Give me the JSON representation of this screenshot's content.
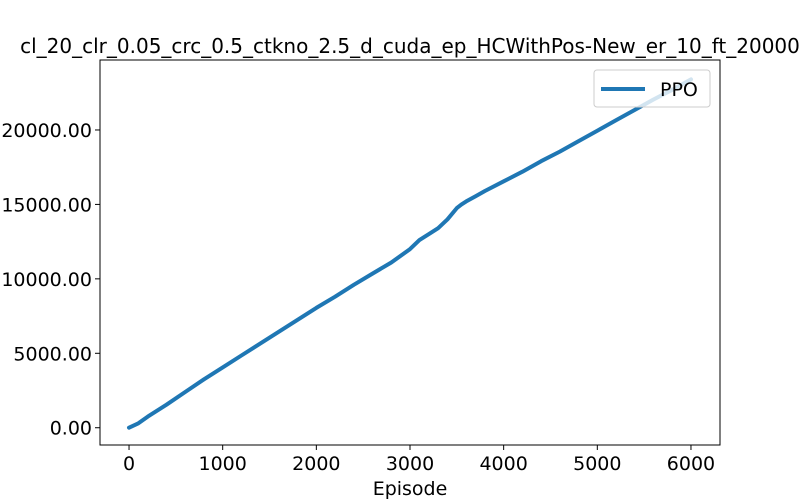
{
  "chart_data": {
    "type": "line",
    "title": "cl_20_clr_0.05_crc_0.5_ctkno_2.5_d_cuda_ep_HCWithPos-New_er_10_ft_20000",
    "xlabel": "Episode",
    "ylabel": "",
    "xlim": [
      -310,
      6310
    ],
    "ylim": [
      -1160,
      24700
    ],
    "x_ticks": [
      0,
      1000,
      2000,
      3000,
      4000,
      5000,
      6000
    ],
    "x_tick_labels": [
      "0",
      "1000",
      "2000",
      "3000",
      "4000",
      "5000",
      "6000"
    ],
    "y_ticks": [
      0,
      5000,
      10000,
      15000,
      20000
    ],
    "y_tick_labels": [
      "0.00",
      "5000.00",
      "10000.00",
      "15000.00",
      "20000.00"
    ],
    "grid": false,
    "legend": {
      "placement": "upper-right"
    },
    "series": [
      {
        "name": "PPO",
        "color": "#1f77b4",
        "x": [
          0,
          100,
          200,
          400,
          600,
          800,
          1000,
          1200,
          1400,
          1600,
          1800,
          2000,
          2200,
          2400,
          2600,
          2800,
          3000,
          3100,
          3200,
          3300,
          3400,
          3500,
          3550,
          3600,
          3700,
          3800,
          4000,
          4200,
          4400,
          4600,
          4800,
          5000,
          5200,
          5400,
          5600,
          5800,
          6000
        ],
        "y": [
          0,
          300,
          750,
          1550,
          2400,
          3250,
          4050,
          4850,
          5650,
          6450,
          7250,
          8050,
          8800,
          9600,
          10350,
          11100,
          12000,
          12600,
          13000,
          13400,
          14000,
          14750,
          15000,
          15200,
          15550,
          15900,
          16550,
          17200,
          17900,
          18550,
          19250,
          19950,
          20650,
          21350,
          22050,
          22700,
          23400
        ]
      }
    ]
  }
}
